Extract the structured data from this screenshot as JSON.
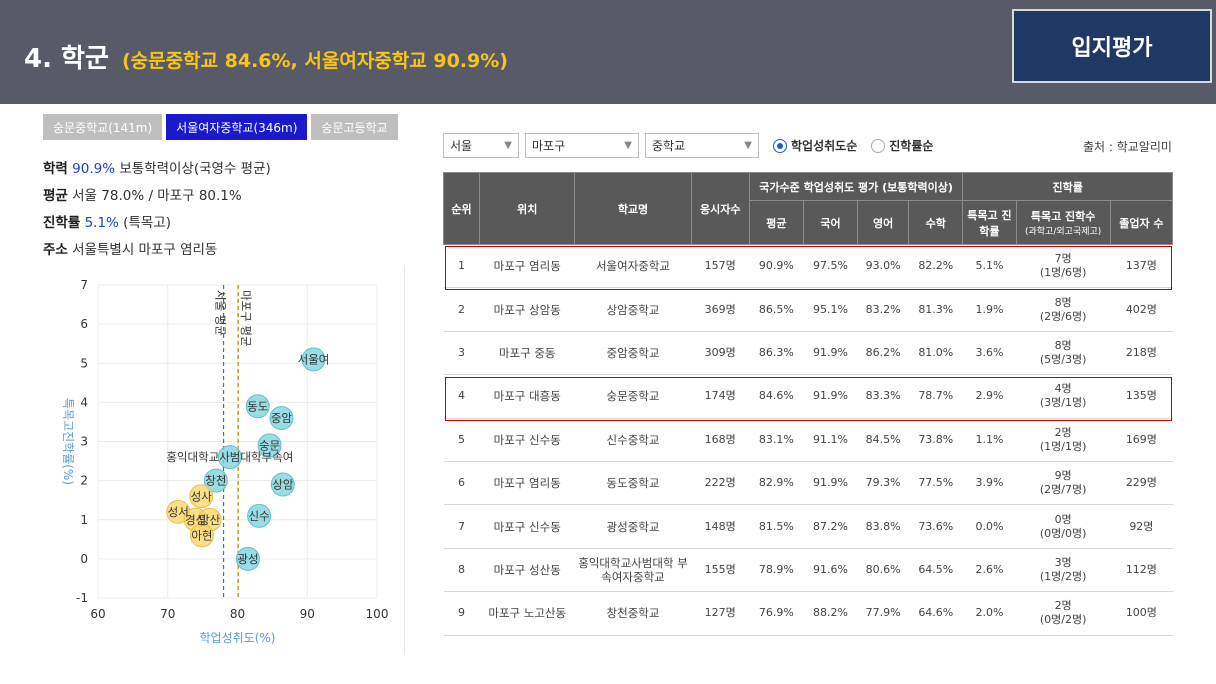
{
  "header": {
    "title": "4. 학군",
    "subtitle": "(숭문중학교 84.6%, 서울여자중학교 90.9%)",
    "badge": "입지평가"
  },
  "school_tabs": [
    {
      "label": "숭문중학교(141m)",
      "active": false
    },
    {
      "label": "서울여자중학교(346m)",
      "active": true
    },
    {
      "label": "숭문고등학교",
      "active": false
    }
  ],
  "info": {
    "academic_label": "학력",
    "academic_value": "90.9%",
    "academic_desc": "보통학력이상(국영수 평균)",
    "average_label": "평균",
    "average_value": "서울 78.0% / 마포구 80.1%",
    "advance_label": "진학률",
    "advance_value": "5.1%",
    "advance_desc": "(특목고)",
    "address_label": "주소",
    "address_value": "서울특별시 마포구 염리동"
  },
  "filters": {
    "city": "서울",
    "district": "마포구",
    "level": "중학교",
    "radio1": "학업성취도순",
    "radio2": "진학률순",
    "source": "출처 : 학교알리미"
  },
  "colors": {
    "header_bg": "#585b67",
    "accent_yellow": "#f5c518",
    "badge_bg": "#1f3864",
    "tab_active": "#1a1acc",
    "bubble_blue": "#7fd3dc",
    "bubble_yellow": "#f9d66a",
    "table_header": "#595959",
    "highlight": "#c00000"
  },
  "table": {
    "group_headers": {
      "achievement": "국가수준 학업성취도 평가 (보통학력이상)",
      "advance": "진학률"
    },
    "headers": {
      "rank": "순위",
      "location": "위치",
      "school": "학교명",
      "applicants": "응시자수",
      "avg": "평균",
      "kor": "국어",
      "eng": "영어",
      "math": "수학",
      "special_rate": "특목고 진학률",
      "special_count": "특목고 진학수",
      "special_count_note": "(과학고/외고국제고)",
      "grads": "졸업자 수"
    },
    "rows": [
      {
        "rank": "1",
        "location": "마포구 염리동",
        "school": "서울여자중학교",
        "applicants": "157명",
        "avg": "90.9%",
        "kor": "97.5%",
        "eng": "93.0%",
        "math": "82.2%",
        "special_rate": "5.1%",
        "special_count": "7명",
        "special_detail": "(1명/6명)",
        "grads": "137명"
      },
      {
        "rank": "2",
        "location": "마포구 상암동",
        "school": "상암중학교",
        "applicants": "369명",
        "avg": "86.5%",
        "kor": "95.1%",
        "eng": "83.2%",
        "math": "81.3%",
        "special_rate": "1.9%",
        "special_count": "8명",
        "special_detail": "(2명/6명)",
        "grads": "402명"
      },
      {
        "rank": "3",
        "location": "마포구 중동",
        "school": "중암중학교",
        "applicants": "309명",
        "avg": "86.3%",
        "kor": "91.9%",
        "eng": "86.2%",
        "math": "81.0%",
        "special_rate": "3.6%",
        "special_count": "8명",
        "special_detail": "(5명/3명)",
        "grads": "218명"
      },
      {
        "rank": "4",
        "location": "마포구 대흥동",
        "school": "숭문중학교",
        "applicants": "174명",
        "avg": "84.6%",
        "kor": "91.9%",
        "eng": "83.3%",
        "math": "78.7%",
        "special_rate": "2.9%",
        "special_count": "4명",
        "special_detail": "(3명/1명)",
        "grads": "135명"
      },
      {
        "rank": "5",
        "location": "마포구 신수동",
        "school": "신수중학교",
        "applicants": "168명",
        "avg": "83.1%",
        "kor": "91.1%",
        "eng": "84.5%",
        "math": "73.8%",
        "special_rate": "1.1%",
        "special_count": "2명",
        "special_detail": "(1명/1명)",
        "grads": "169명"
      },
      {
        "rank": "6",
        "location": "마포구 염리동",
        "school": "동도중학교",
        "applicants": "222명",
        "avg": "82.9%",
        "kor": "91.9%",
        "eng": "79.3%",
        "math": "77.5%",
        "special_rate": "3.9%",
        "special_count": "9명",
        "special_detail": "(2명/7명)",
        "grads": "229명"
      },
      {
        "rank": "7",
        "location": "마포구 신수동",
        "school": "광성중학교",
        "applicants": "148명",
        "avg": "81.5%",
        "kor": "87.2%",
        "eng": "83.8%",
        "math": "73.6%",
        "special_rate": "0.0%",
        "special_count": "0명",
        "special_detail": "(0명/0명)",
        "grads": "92명"
      },
      {
        "rank": "8",
        "location": "마포구 성산동",
        "school": "홍익대학교사범대학 부속여자중학교",
        "applicants": "155명",
        "avg": "78.9%",
        "kor": "91.6%",
        "eng": "80.6%",
        "math": "64.5%",
        "special_rate": "2.6%",
        "special_count": "3명",
        "special_detail": "(1명/2명)",
        "grads": "112명"
      },
      {
        "rank": "9",
        "location": "마포구 노고산동",
        "school": "창천중학교",
        "applicants": "127명",
        "avg": "76.9%",
        "kor": "88.2%",
        "eng": "77.9%",
        "math": "64.6%",
        "special_rate": "2.0%",
        "special_count": "2명",
        "special_detail": "(0명/2명)",
        "grads": "100명"
      }
    ],
    "highlighted_ranks": [
      "1",
      "4"
    ]
  },
  "chart_data": {
    "type": "scatter",
    "xlabel": "학업성취도(%)",
    "ylabel": "특목고진학률(%)",
    "xlim": [
      60,
      100
    ],
    "ylim": [
      -1,
      7
    ],
    "xticks": [
      60,
      70,
      80,
      90,
      100
    ],
    "yticks": [
      -1,
      0,
      1,
      2,
      3,
      4,
      5,
      6,
      7
    ],
    "reference_lines": [
      {
        "x": 78.0,
        "label": "서울 평균",
        "color": "#2e75b6"
      },
      {
        "x": 80.1,
        "label": "마포구 평균",
        "color": "#bf9000"
      }
    ],
    "points": [
      {
        "label": "서울여",
        "x": 90.9,
        "y": 5.1,
        "group": "blue"
      },
      {
        "label": "상암",
        "x": 86.5,
        "y": 1.9,
        "group": "blue"
      },
      {
        "label": "중암",
        "x": 86.3,
        "y": 3.6,
        "group": "blue"
      },
      {
        "label": "숭문",
        "x": 84.6,
        "y": 2.9,
        "group": "blue"
      },
      {
        "label": "신수",
        "x": 83.1,
        "y": 1.1,
        "group": "blue"
      },
      {
        "label": "동도",
        "x": 82.9,
        "y": 3.9,
        "group": "blue"
      },
      {
        "label": "광성",
        "x": 81.5,
        "y": 0.0,
        "group": "blue"
      },
      {
        "label": "홍익대학교사범대학부속여",
        "x": 78.9,
        "y": 2.6,
        "group": "blue"
      },
      {
        "label": "창천",
        "x": 76.9,
        "y": 2.0,
        "group": "blue"
      },
      {
        "label": "성사",
        "x": 74.8,
        "y": 1.6,
        "group": "yellow"
      },
      {
        "label": "성서",
        "x": 71.5,
        "y": 1.2,
        "group": "yellow"
      },
      {
        "label": "경성",
        "x": 74.0,
        "y": 1.0,
        "group": "yellow"
      },
      {
        "label": "망산",
        "x": 76.0,
        "y": 1.0,
        "group": "yellow"
      },
      {
        "label": "아현",
        "x": 74.9,
        "y": 0.6,
        "group": "yellow"
      }
    ]
  }
}
